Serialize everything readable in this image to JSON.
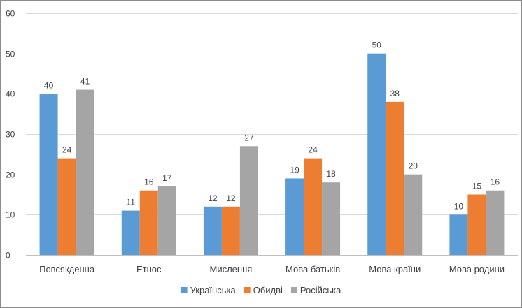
{
  "chart_data": {
    "type": "bar",
    "title": "",
    "xlabel": "",
    "ylabel": "",
    "ylim": [
      0,
      60
    ],
    "yticks": [
      0,
      10,
      20,
      30,
      40,
      50,
      60
    ],
    "grid": true,
    "legend_position": "bottom",
    "categories": [
      "Повсякденна",
      "Етнос",
      "Мислення",
      "Мова батьків",
      "Мова країни",
      "Мова родини"
    ],
    "series": [
      {
        "name": "Українська",
        "color": "#5b9bd5",
        "values": [
          40,
          11,
          12,
          19,
          50,
          10
        ]
      },
      {
        "name": "Обидві",
        "color": "#ed7d31",
        "values": [
          24,
          16,
          12,
          24,
          38,
          15
        ]
      },
      {
        "name": "Російська",
        "color": "#a5a5a5",
        "values": [
          41,
          17,
          27,
          18,
          20,
          16
        ]
      }
    ]
  }
}
